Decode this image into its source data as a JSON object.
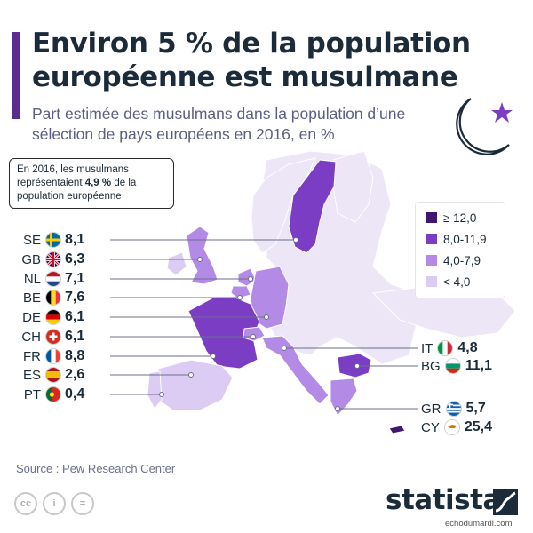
{
  "title": "Environ 5 % de la population européenne est musulmane",
  "subtitle": "Part estimée des musulmans dans la population d’une sélection de pays européens en 2016, en %",
  "callout": {
    "prefix": "En 2016, les musulmans représentaient ",
    "highlight": "4,9 %",
    "suffix": " de la population européenne"
  },
  "legend": [
    {
      "label": "≥ 12,0",
      "color": "#42166e"
    },
    {
      "label": "8,0-11,9",
      "color": "#7a3dc4"
    },
    {
      "label": "4,0-7,9",
      "color": "#b38be6"
    },
    {
      "label": "< 4,0",
      "color": "#dccbf3"
    }
  ],
  "countries_left": [
    {
      "code": "SE",
      "value": "8,1",
      "flag": "flag-sweden-icon"
    },
    {
      "code": "GB",
      "value": "6,3",
      "flag": "flag-uk-icon"
    },
    {
      "code": "NL",
      "value": "7,1",
      "flag": "flag-netherlands-icon"
    },
    {
      "code": "BE",
      "value": "7,6",
      "flag": "flag-belgium-icon"
    },
    {
      "code": "DE",
      "value": "6,1",
      "flag": "flag-germany-icon"
    },
    {
      "code": "CH",
      "value": "6,1",
      "flag": "flag-switzerland-icon"
    },
    {
      "code": "FR",
      "value": "8,8",
      "flag": "flag-france-icon"
    },
    {
      "code": "ES",
      "value": "2,6",
      "flag": "flag-spain-icon"
    },
    {
      "code": "PT",
      "value": "0,4",
      "flag": "flag-portugal-icon"
    }
  ],
  "countries_right": [
    {
      "code": "IT",
      "value": "4,8",
      "flag": "flag-italy-icon"
    },
    {
      "code": "BG",
      "value": "11,1",
      "flag": "flag-bulgaria-icon"
    },
    {
      "code": "GR",
      "value": "5,7",
      "flag": "flag-greece-icon"
    },
    {
      "code": "CY",
      "value": "25,4",
      "flag": "flag-cyprus-icon"
    }
  ],
  "source": "Source : Pew Research Center",
  "brand": "statista",
  "watermark": "echodumardi.com",
  "colors": {
    "accent": "#5b2d8e",
    "title": "#1c2b3a",
    "subtitle": "#5b5f84",
    "base_land": "#ece6f6"
  }
}
